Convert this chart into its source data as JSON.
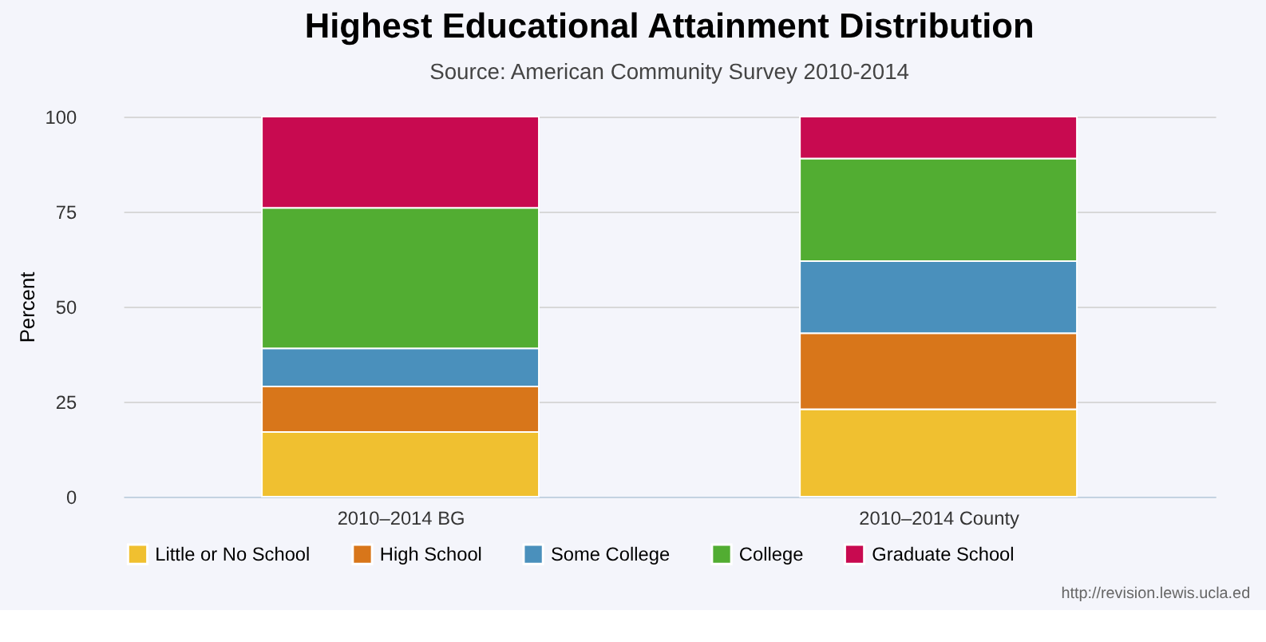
{
  "chart_data": {
    "type": "bar",
    "title": "Highest Educational Attainment Distribution",
    "subtitle": "Source: American Community Survey 2010-2014",
    "ylabel": "Percent",
    "categories": [
      "2010–2014 BG",
      "2010–2014 County"
    ],
    "series": [
      {
        "name": "Little or No School",
        "color": "#f0c030",
        "values": [
          17,
          23
        ]
      },
      {
        "name": "High School",
        "color": "#d8761a",
        "values": [
          12,
          20
        ]
      },
      {
        "name": "Some College",
        "color": "#4a90bc",
        "values": [
          10,
          19
        ]
      },
      {
        "name": "College",
        "color": "#52ad32",
        "values": [
          37,
          27
        ]
      },
      {
        "name": "Graduate School",
        "color": "#c80a50",
        "values": [
          24,
          11
        ]
      }
    ],
    "stacked": true,
    "ylim": [
      0,
      100
    ],
    "yticks": [
      0,
      25,
      50,
      75,
      100
    ],
    "grid": "y",
    "legend": "bottom",
    "annotations": [
      "http://revision.lewis.ucla.ed"
    ]
  }
}
